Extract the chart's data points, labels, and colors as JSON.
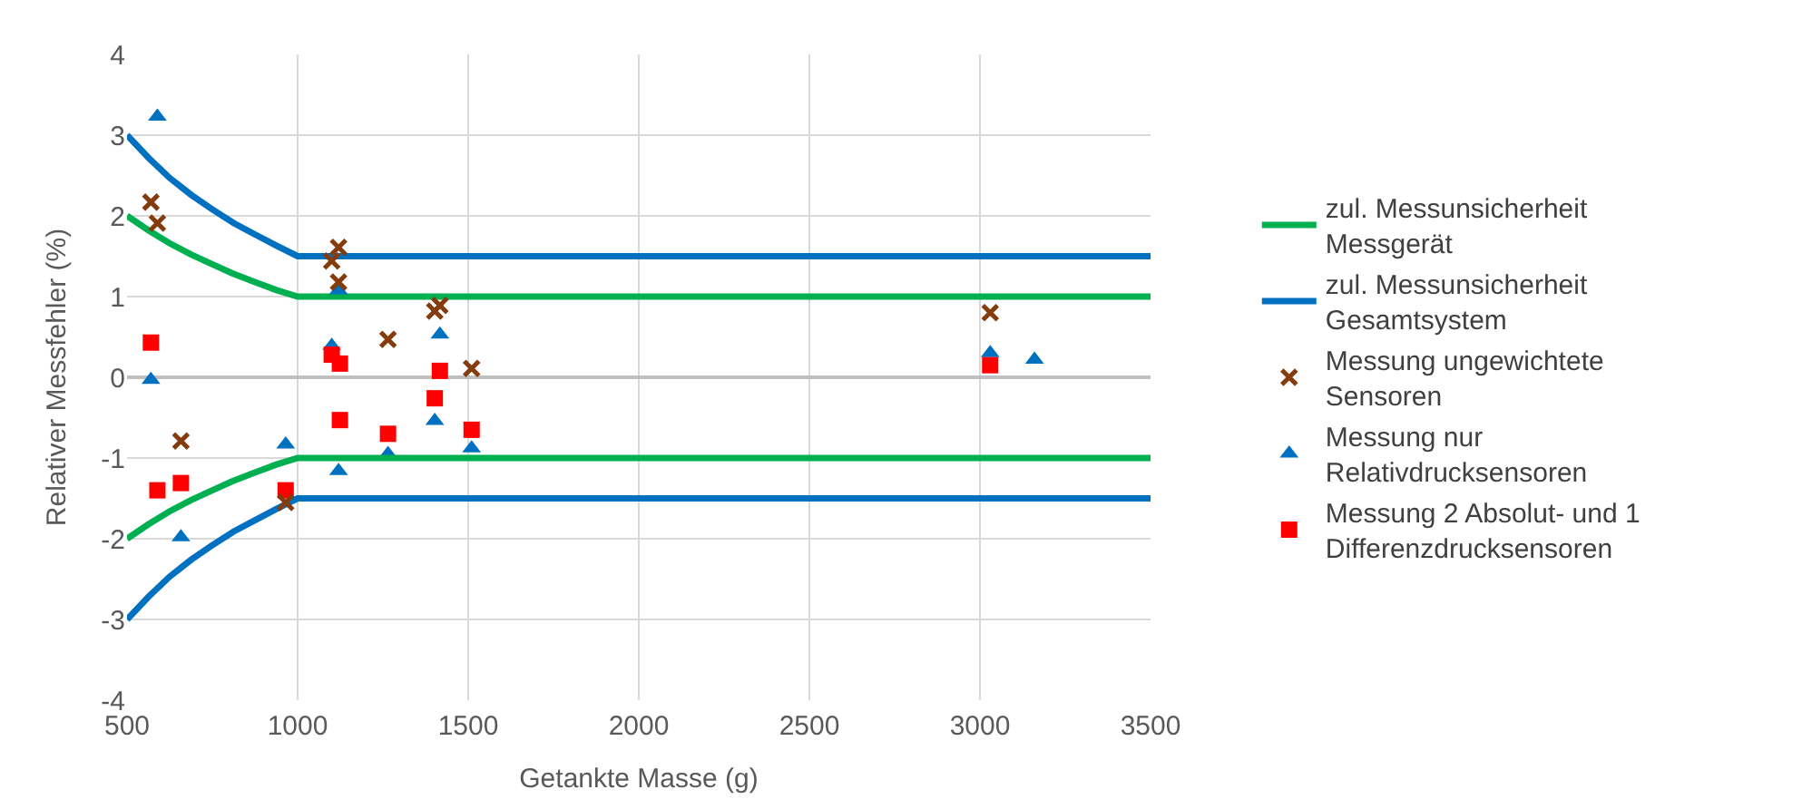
{
  "chart_data": {
    "type": "scatter",
    "xlabel": "Getankte Masse (g)",
    "ylabel": "Relativer Messfehler (%)",
    "xlim": [
      500,
      3500
    ],
    "xticks": [
      500,
      1000,
      1500,
      2000,
      2500,
      3000,
      3500
    ],
    "ylim": [
      -4,
      4
    ],
    "yticks": [
      -4,
      -3,
      -2,
      -1,
      0,
      1,
      2,
      3,
      4
    ],
    "grid": true,
    "legend": "right",
    "series": [
      {
        "name": "zul. Messunsicherheit Messgerät",
        "type": "line",
        "marker": "none",
        "color": "#00b050",
        "x": [
          500,
          563,
          625,
          688,
          750,
          813,
          875,
          938,
          1000,
          3500
        ],
        "values": [
          2.0,
          1.82,
          1.66,
          1.52,
          1.4,
          1.28,
          1.18,
          1.08,
          1.0,
          1.0
        ]
      },
      {
        "name": "zul. Messunsicherheit Gesamtsystem",
        "type": "line",
        "marker": "none",
        "color": "#0070c0",
        "x": [
          500,
          563,
          625,
          688,
          750,
          813,
          875,
          938,
          1000,
          3500
        ],
        "values": [
          3.0,
          2.72,
          2.47,
          2.26,
          2.08,
          1.91,
          1.77,
          1.63,
          1.5,
          1.5
        ]
      },
      {
        "name": "Messung ungewichtete Sensoren",
        "marker": "cross",
        "color": "#843c0c",
        "x": [
          570,
          589,
          658,
          965,
          1100,
          1120,
          1120,
          1265,
          1402,
          1417,
          1510,
          3030
        ],
        "values": [
          2.17,
          1.91,
          -0.79,
          -1.55,
          1.44,
          1.61,
          1.18,
          0.47,
          0.82,
          0.89,
          0.11,
          0.8
        ]
      },
      {
        "name": "Messung nur Relativdrucksensoren",
        "marker": "triangle",
        "color": "#0070c0",
        "x": [
          570,
          589,
          658,
          965,
          1100,
          1120,
          1120,
          1265,
          1402,
          1417,
          1510,
          3030,
          3160
        ],
        "values": [
          -0.03,
          3.23,
          -1.98,
          -0.83,
          0.39,
          1.08,
          -1.16,
          -0.95,
          -0.54,
          0.53,
          -0.88,
          0.3,
          0.22
        ]
      },
      {
        "name": "Messung 2 Absolut- und 1 Differenzdrucksensoren",
        "marker": "square",
        "color": "#ff0000",
        "x": [
          570,
          589,
          658,
          965,
          1100,
          1124,
          1124,
          1265,
          1402,
          1417,
          1510,
          3030
        ],
        "values": [
          0.43,
          -1.4,
          -1.31,
          -1.4,
          0.28,
          0.17,
          -0.53,
          -0.7,
          -0.26,
          0.08,
          -0.65,
          0.15
        ]
      },
      {
        "name": null,
        "type": "line",
        "marker": "none",
        "color": "#00b050",
        "x": [
          500,
          563,
          625,
          688,
          750,
          813,
          875,
          938,
          1000,
          3500
        ],
        "values": [
          -2.0,
          -1.82,
          -1.66,
          -1.52,
          -1.4,
          -1.28,
          -1.18,
          -1.08,
          -1.0,
          -1.0
        ]
      },
      {
        "name": null,
        "type": "line",
        "marker": "none",
        "color": "#0070c0",
        "x": [
          500,
          563,
          625,
          688,
          750,
          813,
          875,
          938,
          1000,
          3500
        ],
        "values": [
          -3.0,
          -2.72,
          -2.47,
          -2.26,
          -2.08,
          -1.91,
          -1.77,
          -1.63,
          -1.5,
          -1.5
        ]
      }
    ]
  }
}
